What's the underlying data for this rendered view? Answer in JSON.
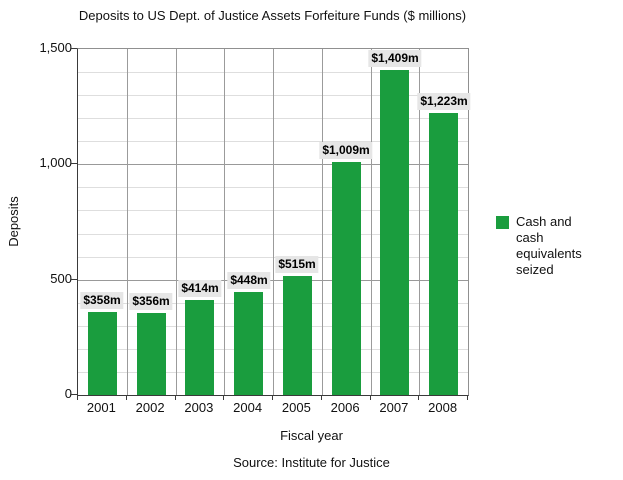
{
  "chart_data": {
    "type": "bar",
    "title": "Deposits to US Dept. of Justice Assets Forfeiture Funds ($ millions)",
    "categories": [
      "2001",
      "2002",
      "2003",
      "2004",
      "2005",
      "2006",
      "2007",
      "2008"
    ],
    "values": [
      358,
      356,
      414,
      448,
      515,
      1009,
      1409,
      1223
    ],
    "value_labels": [
      "$358m",
      "$356m",
      "$414m",
      "$448m",
      "$515m",
      "$1,009m",
      "$1,409m",
      "$1,223m"
    ],
    "xlabel": "Fiscal year",
    "ylabel": "Deposits",
    "ylim": [
      0,
      1500
    ],
    "yticks": [
      0,
      500,
      1000,
      1500
    ],
    "ytick_labels": [
      "0",
      "500",
      "1,000",
      "1,500"
    ],
    "minor_grid_step": 100,
    "grid": true,
    "legend": {
      "position": "right",
      "entries": [
        {
          "label": "Cash and cash equivalents seized",
          "color": "#1a9d3e"
        }
      ]
    },
    "colors": {
      "bar": "#1a9d3e",
      "value_label_background": "#e6e6e6",
      "major_gridline": "#999999",
      "minor_gridline": "#dedede",
      "axis_line": "#3a3a3a"
    }
  },
  "source": "Source: Institute for Justice"
}
